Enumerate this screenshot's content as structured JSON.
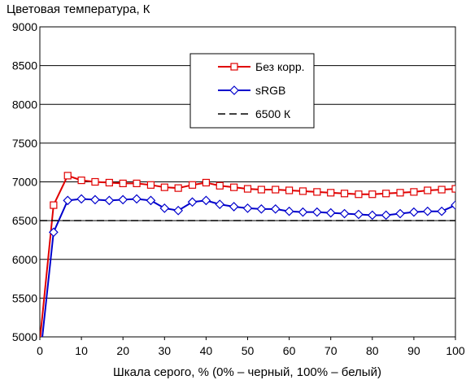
{
  "chart_data": {
    "type": "line",
    "title": "",
    "ylabel": "Цветовая температура, К",
    "xlabel": "Шкала серого, % (0% – черный, 100% – белый)",
    "xlim": [
      0,
      100
    ],
    "ylim": [
      5000,
      9000
    ],
    "xticks": [
      0,
      10,
      20,
      30,
      40,
      50,
      60,
      70,
      80,
      90,
      100
    ],
    "yticks": [
      5000,
      5500,
      6000,
      6500,
      7000,
      7500,
      8000,
      8500,
      9000
    ],
    "grid": true,
    "legend_position": "top-right",
    "series": [
      {
        "name": "Без корр.",
        "color": "#e00000",
        "marker": "square",
        "points": [
          [
            0,
            4950
          ],
          [
            3.3,
            6700
          ],
          [
            6.7,
            7080
          ],
          [
            10,
            7020
          ],
          [
            13.3,
            7000
          ],
          [
            16.7,
            6990
          ],
          [
            20,
            6980
          ],
          [
            23.3,
            6980
          ],
          [
            26.7,
            6960
          ],
          [
            30,
            6930
          ],
          [
            33.3,
            6920
          ],
          [
            36.7,
            6960
          ],
          [
            40,
            6990
          ],
          [
            43.3,
            6950
          ],
          [
            46.7,
            6930
          ],
          [
            50,
            6910
          ],
          [
            53.3,
            6900
          ],
          [
            56.7,
            6900
          ],
          [
            60,
            6890
          ],
          [
            63.3,
            6880
          ],
          [
            66.7,
            6870
          ],
          [
            70,
            6860
          ],
          [
            73.3,
            6850
          ],
          [
            76.7,
            6840
          ],
          [
            80,
            6840
          ],
          [
            83.3,
            6850
          ],
          [
            86.7,
            6860
          ],
          [
            90,
            6870
          ],
          [
            93.3,
            6890
          ],
          [
            96.7,
            6900
          ],
          [
            100,
            6910
          ]
        ]
      },
      {
        "name": "sRGB",
        "color": "#0000cc",
        "marker": "diamond",
        "points": [
          [
            0,
            4700
          ],
          [
            3.3,
            6350
          ],
          [
            6.7,
            6760
          ],
          [
            10,
            6780
          ],
          [
            13.3,
            6770
          ],
          [
            16.7,
            6760
          ],
          [
            20,
            6770
          ],
          [
            23.3,
            6780
          ],
          [
            26.7,
            6760
          ],
          [
            30,
            6660
          ],
          [
            33.3,
            6630
          ],
          [
            36.7,
            6740
          ],
          [
            40,
            6760
          ],
          [
            43.3,
            6710
          ],
          [
            46.7,
            6680
          ],
          [
            50,
            6660
          ],
          [
            53.3,
            6650
          ],
          [
            56.7,
            6650
          ],
          [
            60,
            6620
          ],
          [
            63.3,
            6610
          ],
          [
            66.7,
            6610
          ],
          [
            70,
            6600
          ],
          [
            73.3,
            6590
          ],
          [
            76.7,
            6580
          ],
          [
            80,
            6570
          ],
          [
            83.3,
            6570
          ],
          [
            86.7,
            6590
          ],
          [
            90,
            6610
          ],
          [
            93.3,
            6620
          ],
          [
            96.7,
            6620
          ],
          [
            100,
            6700
          ]
        ]
      },
      {
        "name": "6500 К",
        "color": "#000000",
        "marker": "none",
        "dashed": true,
        "points": [
          [
            0,
            6500
          ],
          [
            100,
            6500
          ]
        ]
      }
    ]
  }
}
